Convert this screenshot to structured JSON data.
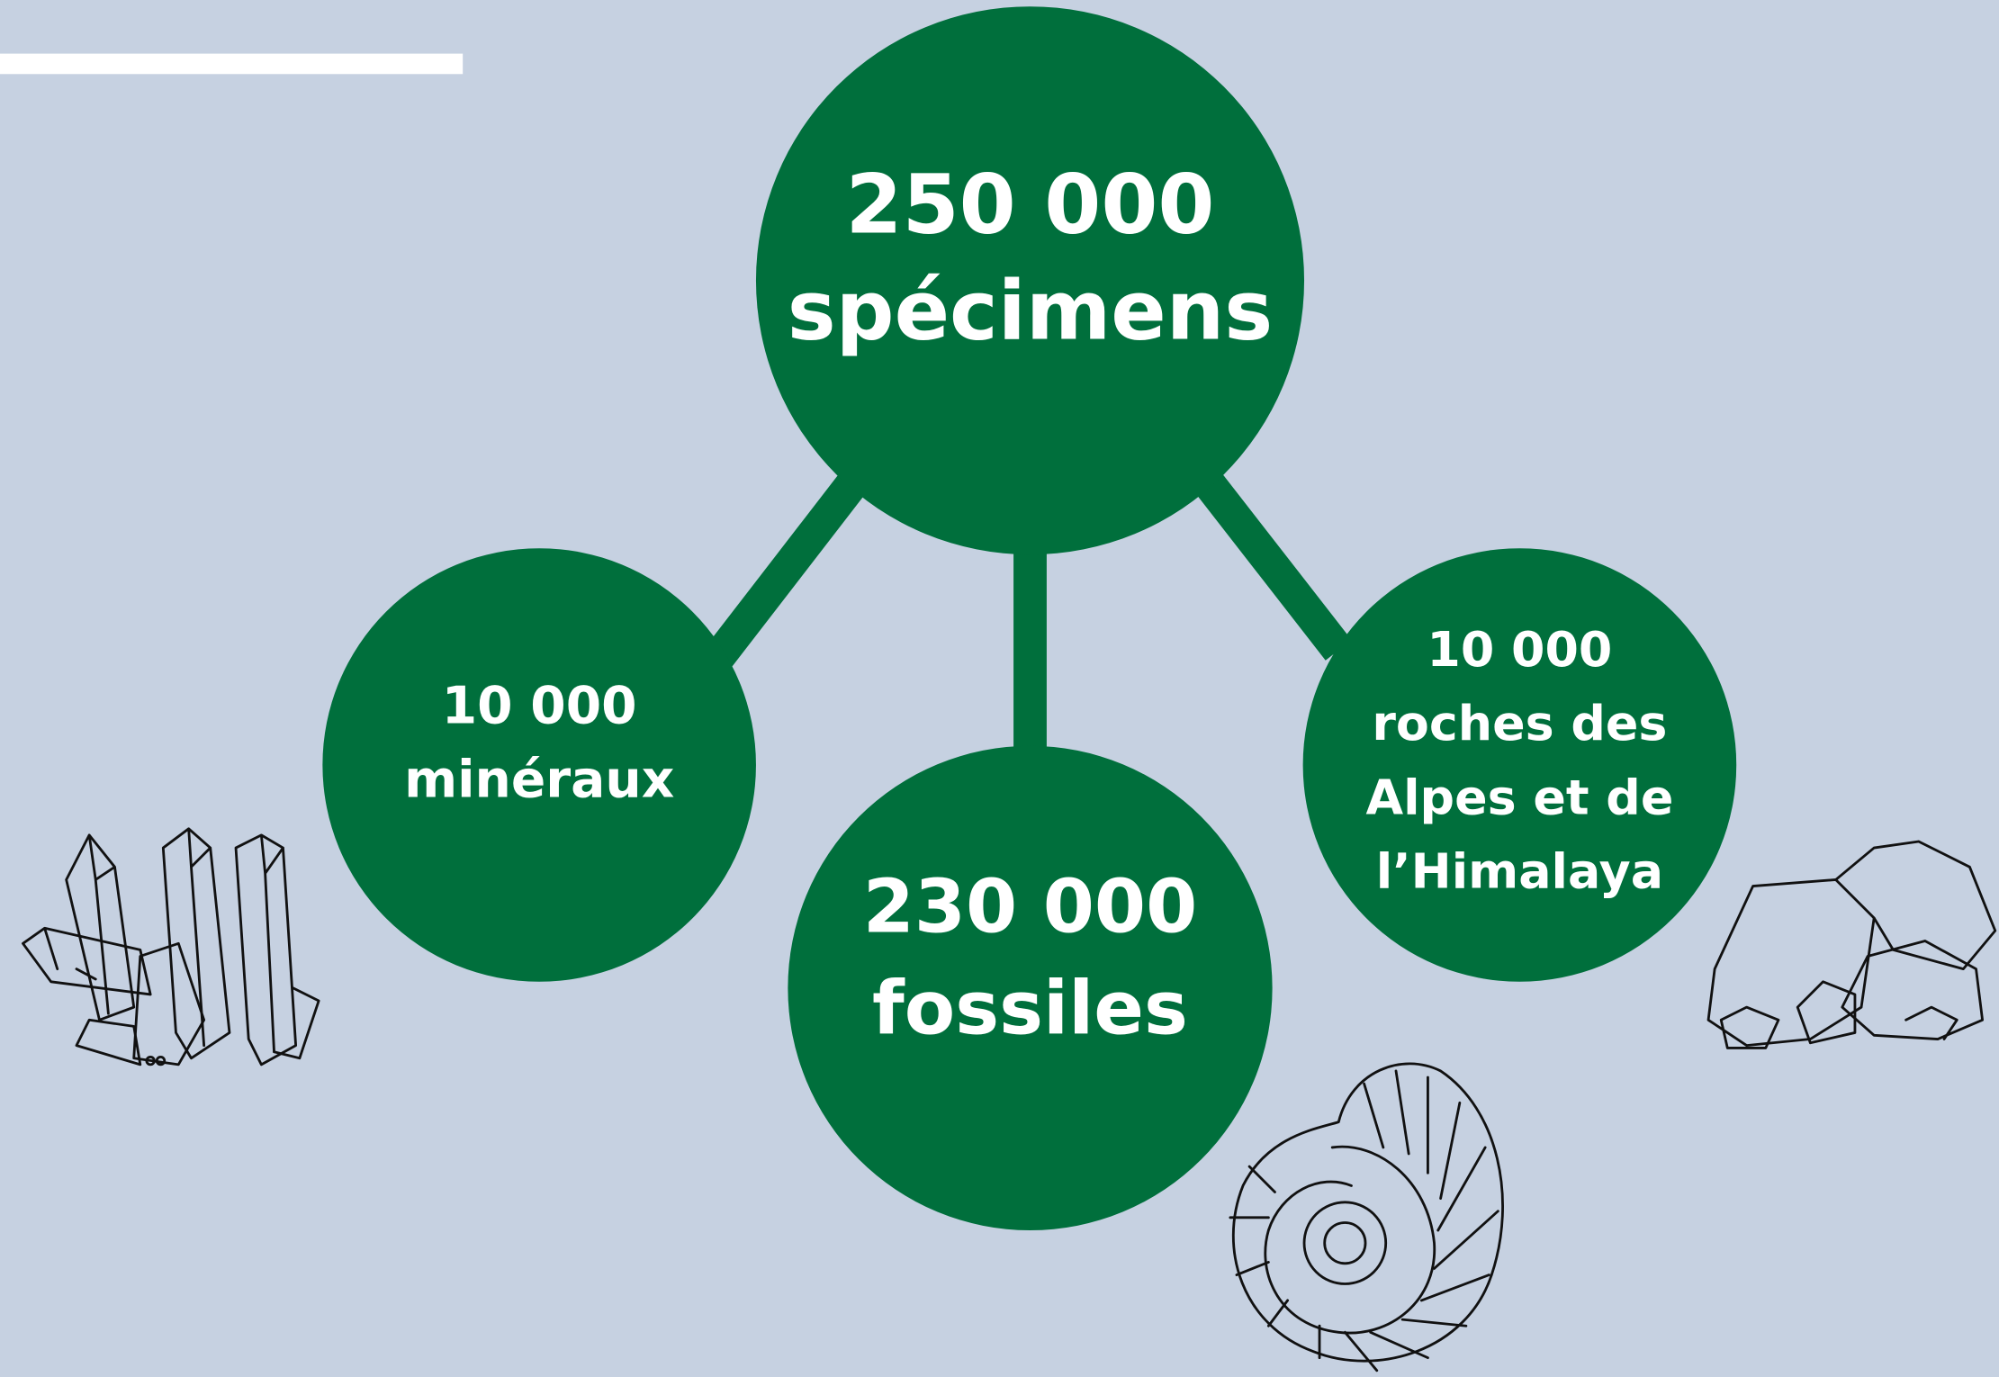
{
  "nodes": [
    {
      "lines": [
        "250 000",
        "spécimens"
      ]
    },
    {
      "lines": [
        "10 000",
        "minéraux"
      ]
    },
    {
      "lines": [
        "230 000",
        "fossiles"
      ]
    },
    {
      "lines": [
        "10 000",
        "roches des",
        "Alpes et de",
        "l’Himalaya"
      ]
    }
  ]
}
